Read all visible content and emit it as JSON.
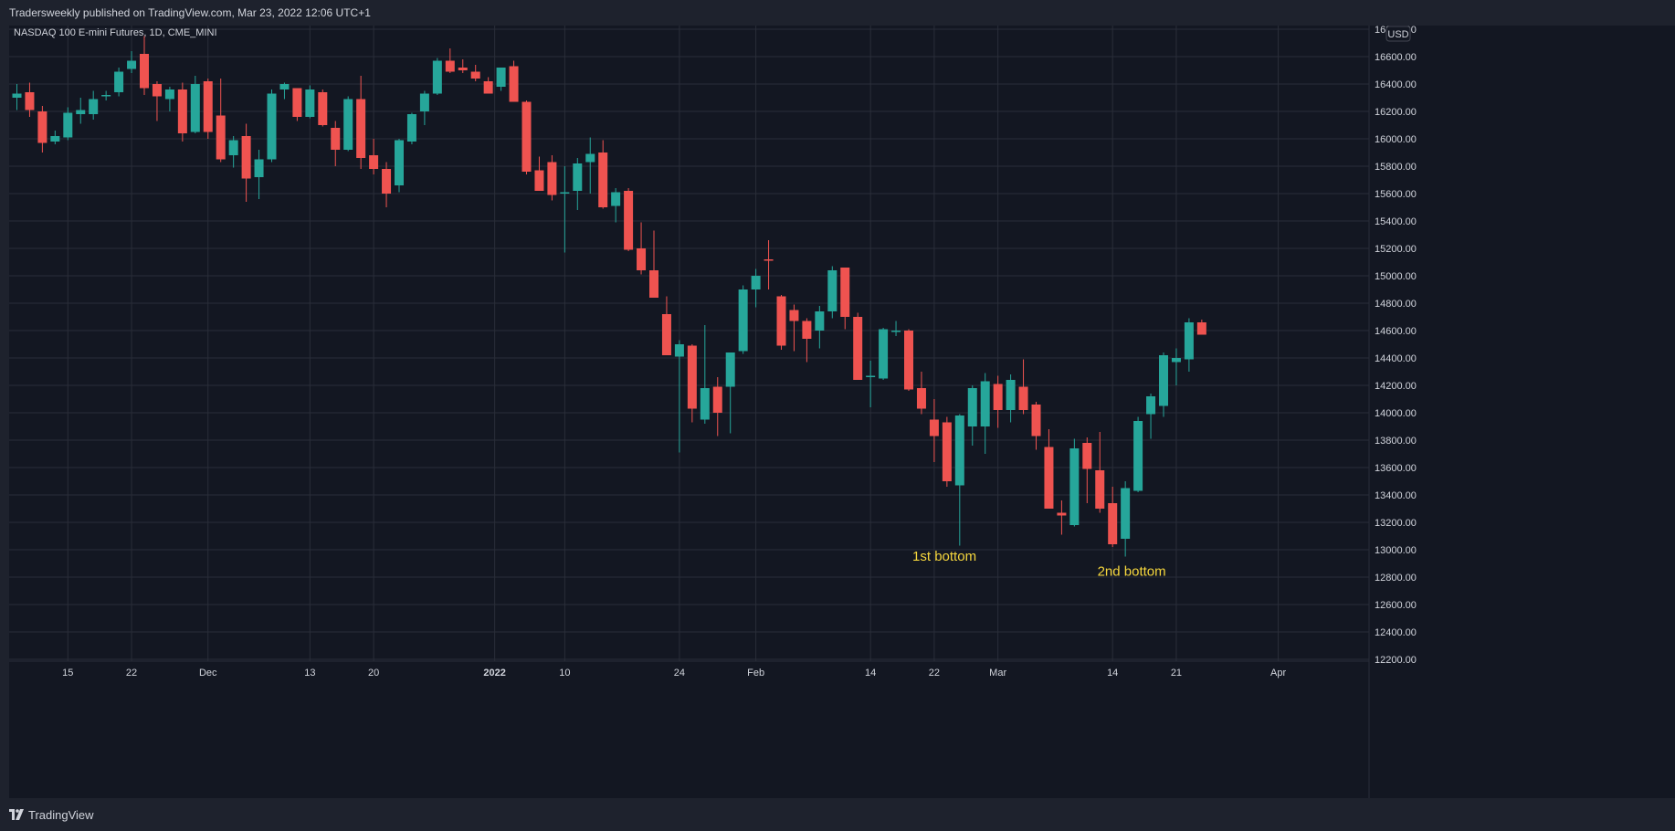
{
  "header": {
    "published_text": "Tradersweekly published on TradingView.com, Mar 23, 2022 12:06 UTC+1"
  },
  "footer": {
    "brand_name": "TradingView"
  },
  "colors": {
    "up": "#26a69a",
    "down": "#ef5350",
    "annotation": "#f5d63d",
    "grid": "#2a2e39",
    "background": "#131722"
  },
  "chart_data": {
    "type": "candlestick",
    "symbol_label": "NASDAQ 100 E-mini Futures, 1D, CME_MINI",
    "currency": "USD",
    "ylim": [
      12200,
      16800
    ],
    "y_ticks": [
      12200,
      12400,
      12600,
      12800,
      13000,
      13200,
      13400,
      13600,
      13800,
      14000,
      14200,
      14400,
      14600,
      14800,
      15000,
      15200,
      15400,
      15600,
      15800,
      16000,
      16200,
      16400,
      16600,
      16800
    ],
    "y_tick_labels": [
      "12200.00",
      "12400.00",
      "12600.00",
      "12800.00",
      "13000.00",
      "13200.00",
      "13400.00",
      "13600.00",
      "13800.00",
      "14000.00",
      "14200.00",
      "14400.00",
      "14600.00",
      "14800.00",
      "15000.00",
      "15200.00",
      "15400.00",
      "15600.00",
      "15800.00",
      "16000.00",
      "16200.00",
      "16400.00",
      "16600.00",
      "16800.00"
    ],
    "x_ticks": [
      {
        "index": 4,
        "label": "15"
      },
      {
        "index": 9,
        "label": "22"
      },
      {
        "index": 15,
        "label": "Dec"
      },
      {
        "index": 23,
        "label": "13"
      },
      {
        "index": 28,
        "label": "20"
      },
      {
        "index": 37.5,
        "label": "2022"
      },
      {
        "index": 43,
        "label": "10"
      },
      {
        "index": 52,
        "label": "24"
      },
      {
        "index": 58,
        "label": "Feb"
      },
      {
        "index": 67,
        "label": "14"
      },
      {
        "index": 72,
        "label": "22"
      },
      {
        "index": 77,
        "label": "Mar"
      },
      {
        "index": 86,
        "label": "14"
      },
      {
        "index": 91,
        "label": "21"
      },
      {
        "index": 99,
        "label": "Apr"
      }
    ],
    "candles": [
      {
        "o": 16300,
        "h": 16400,
        "l": 16210,
        "c": 16330
      },
      {
        "o": 16340,
        "h": 16410,
        "l": 16160,
        "c": 16210
      },
      {
        "o": 16200,
        "h": 16240,
        "l": 15900,
        "c": 15970
      },
      {
        "o": 15980,
        "h": 16060,
        "l": 15960,
        "c": 16020
      },
      {
        "o": 16010,
        "h": 16230,
        "l": 15990,
        "c": 16190
      },
      {
        "o": 16180,
        "h": 16300,
        "l": 16110,
        "c": 16210
      },
      {
        "o": 16180,
        "h": 16350,
        "l": 16140,
        "c": 16290
      },
      {
        "o": 16310,
        "h": 16350,
        "l": 16280,
        "c": 16320
      },
      {
        "o": 16340,
        "h": 16520,
        "l": 16310,
        "c": 16490
      },
      {
        "o": 16510,
        "h": 16640,
        "l": 16480,
        "c": 16570
      },
      {
        "o": 16620,
        "h": 16750,
        "l": 16320,
        "c": 16370
      },
      {
        "o": 16400,
        "h": 16420,
        "l": 16130,
        "c": 16310
      },
      {
        "o": 16290,
        "h": 16380,
        "l": 16200,
        "c": 16360
      },
      {
        "o": 16360,
        "h": 16410,
        "l": 15980,
        "c": 16040
      },
      {
        "o": 16050,
        "h": 16460,
        "l": 16040,
        "c": 16400
      },
      {
        "o": 16420,
        "h": 16440,
        "l": 16000,
        "c": 16050
      },
      {
        "o": 16170,
        "h": 16440,
        "l": 15830,
        "c": 15850
      },
      {
        "o": 15880,
        "h": 16020,
        "l": 15790,
        "c": 15990
      },
      {
        "o": 16020,
        "h": 16110,
        "l": 15540,
        "c": 15710
      },
      {
        "o": 15720,
        "h": 15920,
        "l": 15560,
        "c": 15850
      },
      {
        "o": 15850,
        "h": 16360,
        "l": 15830,
        "c": 16330
      },
      {
        "o": 16360,
        "h": 16410,
        "l": 16290,
        "c": 16400
      },
      {
        "o": 16370,
        "h": 16370,
        "l": 16130,
        "c": 16160
      },
      {
        "o": 16160,
        "h": 16390,
        "l": 16150,
        "c": 16360
      },
      {
        "o": 16340,
        "h": 16360,
        "l": 16090,
        "c": 16100
      },
      {
        "o": 16080,
        "h": 16130,
        "l": 15800,
        "c": 15920
      },
      {
        "o": 15920,
        "h": 16310,
        "l": 15910,
        "c": 16290
      },
      {
        "o": 16290,
        "h": 16460,
        "l": 15780,
        "c": 15860
      },
      {
        "o": 15880,
        "h": 16000,
        "l": 15740,
        "c": 15780
      },
      {
        "o": 15780,
        "h": 15830,
        "l": 15500,
        "c": 15600
      },
      {
        "o": 15660,
        "h": 16000,
        "l": 15610,
        "c": 15990
      },
      {
        "o": 15980,
        "h": 16190,
        "l": 15960,
        "c": 16180
      },
      {
        "o": 16200,
        "h": 16350,
        "l": 16100,
        "c": 16330
      },
      {
        "o": 16330,
        "h": 16590,
        "l": 16320,
        "c": 16570
      },
      {
        "o": 16570,
        "h": 16660,
        "l": 16480,
        "c": 16490
      },
      {
        "o": 16520,
        "h": 16580,
        "l": 16480,
        "c": 16500
      },
      {
        "o": 16490,
        "h": 16540,
        "l": 16420,
        "c": 16440
      },
      {
        "o": 16420,
        "h": 16450,
        "l": 16330,
        "c": 16330
      },
      {
        "o": 16380,
        "h": 16520,
        "l": 16350,
        "c": 16520
      },
      {
        "o": 16530,
        "h": 16570,
        "l": 16300,
        "c": 16270
      },
      {
        "o": 16270,
        "h": 16280,
        "l": 15740,
        "c": 15760
      },
      {
        "o": 15770,
        "h": 15870,
        "l": 15620,
        "c": 15620
      },
      {
        "o": 15830,
        "h": 15880,
        "l": 15550,
        "c": 15590
      },
      {
        "o": 15600,
        "h": 15800,
        "l": 15170,
        "c": 15610
      },
      {
        "o": 15620,
        "h": 15860,
        "l": 15480,
        "c": 15820
      },
      {
        "o": 15830,
        "h": 16010,
        "l": 15600,
        "c": 15890
      },
      {
        "o": 15900,
        "h": 15990,
        "l": 15490,
        "c": 15500
      },
      {
        "o": 15510,
        "h": 15640,
        "l": 15390,
        "c": 15610
      },
      {
        "o": 15620,
        "h": 15640,
        "l": 15180,
        "c": 15190
      },
      {
        "o": 15200,
        "h": 15390,
        "l": 15010,
        "c": 15040
      },
      {
        "o": 15040,
        "h": 15330,
        "l": 14840,
        "c": 14840
      },
      {
        "o": 14720,
        "h": 14850,
        "l": 14420,
        "c": 14420
      },
      {
        "o": 14410,
        "h": 14530,
        "l": 13710,
        "c": 14500
      },
      {
        "o": 14490,
        "h": 14500,
        "l": 13930,
        "c": 14030
      },
      {
        "o": 13950,
        "h": 14640,
        "l": 13920,
        "c": 14180
      },
      {
        "o": 14190,
        "h": 14260,
        "l": 13830,
        "c": 14000
      },
      {
        "o": 14190,
        "h": 14440,
        "l": 13850,
        "c": 14440
      },
      {
        "o": 14450,
        "h": 14930,
        "l": 14430,
        "c": 14900
      },
      {
        "o": 14900,
        "h": 15050,
        "l": 14770,
        "c": 15000
      },
      {
        "o": 15120,
        "h": 15260,
        "l": 14900,
        "c": 15110
      },
      {
        "o": 14850,
        "h": 14860,
        "l": 14460,
        "c": 14490
      },
      {
        "o": 14750,
        "h": 14790,
        "l": 14450,
        "c": 14670
      },
      {
        "o": 14670,
        "h": 14690,
        "l": 14370,
        "c": 14540
      },
      {
        "o": 14600,
        "h": 14780,
        "l": 14470,
        "c": 14740
      },
      {
        "o": 14740,
        "h": 15070,
        "l": 14690,
        "c": 15040
      },
      {
        "o": 15060,
        "h": 15060,
        "l": 14610,
        "c": 14700
      },
      {
        "o": 14700,
        "h": 14730,
        "l": 14240,
        "c": 14240
      },
      {
        "o": 14260,
        "h": 14380,
        "l": 14040,
        "c": 14270
      },
      {
        "o": 14250,
        "h": 14620,
        "l": 14240,
        "c": 14610
      },
      {
        "o": 14590,
        "h": 14670,
        "l": 14560,
        "c": 14600
      },
      {
        "o": 14600,
        "h": 14610,
        "l": 14160,
        "c": 14170
      },
      {
        "o": 14180,
        "h": 14300,
        "l": 13990,
        "c": 14030
      },
      {
        "o": 13950,
        "h": 14100,
        "l": 13640,
        "c": 13830
      },
      {
        "o": 13930,
        "h": 13970,
        "l": 13460,
        "c": 13500
      },
      {
        "o": 13470,
        "h": 13990,
        "l": 13030,
        "c": 13980
      },
      {
        "o": 13900,
        "h": 14200,
        "l": 13760,
        "c": 14180
      },
      {
        "o": 13900,
        "h": 14290,
        "l": 13700,
        "c": 14230
      },
      {
        "o": 14210,
        "h": 14270,
        "l": 13890,
        "c": 14020
      },
      {
        "o": 14020,
        "h": 14280,
        "l": 13930,
        "c": 14240
      },
      {
        "o": 14190,
        "h": 14390,
        "l": 13990,
        "c": 14020
      },
      {
        "o": 14060,
        "h": 14080,
        "l": 13730,
        "c": 13830
      },
      {
        "o": 13750,
        "h": 13880,
        "l": 13300,
        "c": 13300
      },
      {
        "o": 13270,
        "h": 13360,
        "l": 13110,
        "c": 13250
      },
      {
        "o": 13180,
        "h": 13810,
        "l": 13170,
        "c": 13740
      },
      {
        "o": 13780,
        "h": 13820,
        "l": 13340,
        "c": 13590
      },
      {
        "o": 13580,
        "h": 13860,
        "l": 13270,
        "c": 13300
      },
      {
        "o": 13340,
        "h": 13460,
        "l": 13020,
        "c": 13040
      },
      {
        "o": 13080,
        "h": 13500,
        "l": 12950,
        "c": 13450
      },
      {
        "o": 13430,
        "h": 13970,
        "l": 13420,
        "c": 13940
      },
      {
        "o": 13990,
        "h": 14140,
        "l": 13810,
        "c": 14120
      },
      {
        "o": 14050,
        "h": 14440,
        "l": 13970,
        "c": 14420
      },
      {
        "o": 14370,
        "h": 14470,
        "l": 14200,
        "c": 14400
      },
      {
        "o": 14390,
        "h": 14690,
        "l": 14300,
        "c": 14660
      },
      {
        "o": 14660,
        "h": 14680,
        "l": 14570,
        "c": 14570
      }
    ],
    "annotations": [
      {
        "text": "1st bottom",
        "index": 72.8,
        "y": 12920
      },
      {
        "text": "2nd bottom",
        "index": 87.5,
        "y": 12810
      }
    ]
  }
}
